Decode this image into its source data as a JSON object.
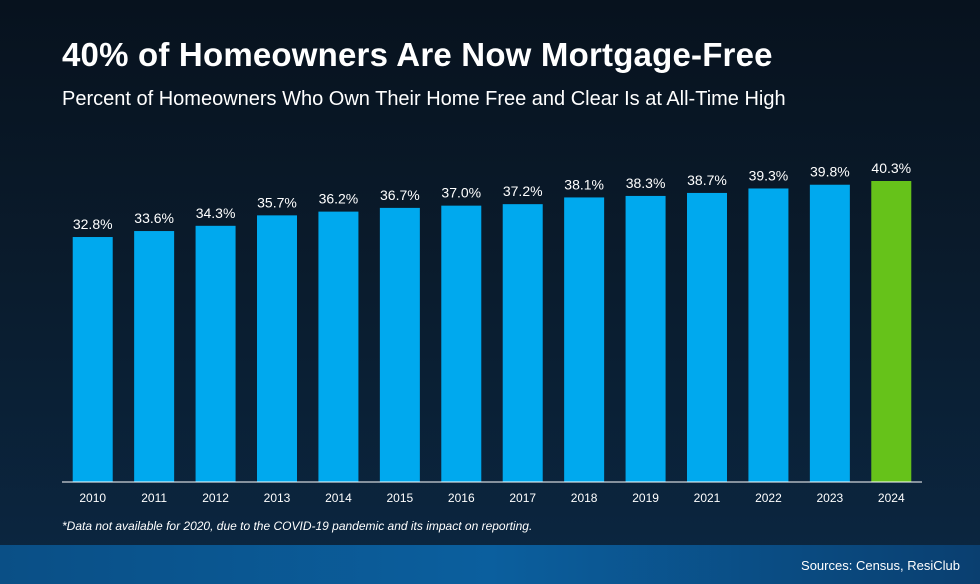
{
  "title": "40% of Homeowners Are Now Mortgage-Free",
  "subtitle": "Percent of Homeowners Who Own Their Home Free and Clear Is at All-Time High",
  "footnote": "*Data not available for 2020, due to the COVID-19 pandemic and its impact on reporting.",
  "sources": "Sources: Census, ResiClub",
  "colors": {
    "bar": "#00a9ee",
    "highlight": "#66c21a",
    "axis": "#ffffff"
  },
  "chart_data": {
    "type": "bar",
    "categories": [
      "2010",
      "2011",
      "2012",
      "2013",
      "2014",
      "2015",
      "2016",
      "2017",
      "2018",
      "2019",
      "2021",
      "2022",
      "2023",
      "2024"
    ],
    "values": [
      32.8,
      33.6,
      34.3,
      35.7,
      36.2,
      36.7,
      37.0,
      37.2,
      38.1,
      38.3,
      38.7,
      39.3,
      39.8,
      40.3
    ],
    "data_labels": [
      "32.8%",
      "33.6%",
      "34.3%",
      "35.7%",
      "36.2%",
      "36.7%",
      "37.0%",
      "37.2%",
      "38.1%",
      "38.3%",
      "38.7%",
      "39.3%",
      "39.8%",
      "40.3%"
    ],
    "highlight_category": "2024",
    "xlabel": "",
    "ylabel": "",
    "ylim": [
      0,
      40.3
    ],
    "grid": false
  }
}
